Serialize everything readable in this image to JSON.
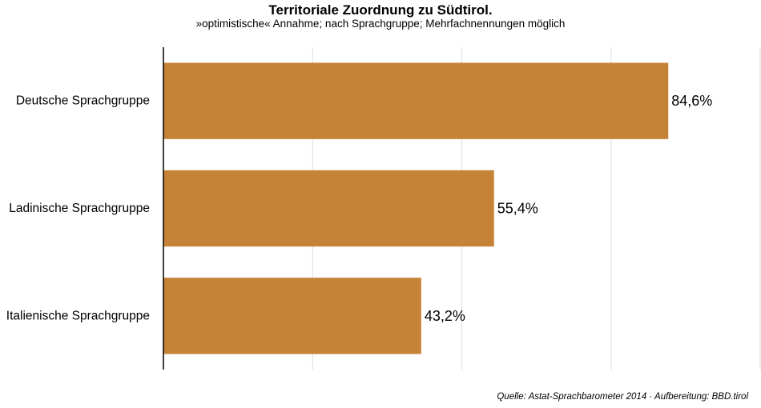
{
  "chart_data": {
    "type": "bar",
    "orientation": "horizontal",
    "title": "Territoriale Zuordnung zu Südtirol.",
    "subtitle": "»optimistische« Annahme; nach Sprachgruppe; Mehrfachnennungen möglich",
    "categories": [
      "Deutsche Sprachgruppe",
      "Ladinische Sprachgruppe",
      "Italienische Sprachgruppe"
    ],
    "values": [
      84.6,
      55.4,
      43.2
    ],
    "value_labels": [
      "84,6%",
      "55,4%",
      "43,2%"
    ],
    "xlim": [
      0,
      100
    ],
    "grid": true,
    "bar_color": "#C68236",
    "source": "Quelle: Astat-Sprachbarometer 2014 · Aufbereitung: BBD.tirol"
  }
}
